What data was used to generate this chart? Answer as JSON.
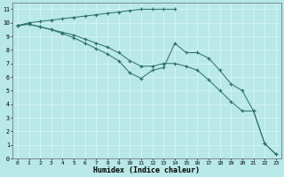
{
  "xlabel": "Humidex (Indice chaleur)",
  "xlim": [
    -0.5,
    23.5
  ],
  "ylim": [
    0,
    11.5
  ],
  "yticks": [
    0,
    1,
    2,
    3,
    4,
    5,
    6,
    7,
    8,
    9,
    10,
    11
  ],
  "xticks": [
    0,
    1,
    2,
    3,
    4,
    5,
    6,
    7,
    8,
    9,
    10,
    11,
    12,
    13,
    14,
    15,
    16,
    17,
    18,
    19,
    20,
    21,
    22,
    23
  ],
  "bg_color": "#b8e8e8",
  "grid_color": "#d8f4f4",
  "line_color": "#2a6e62",
  "line1_x": [
    0,
    1,
    2,
    3,
    4,
    5,
    6,
    7,
    8,
    9,
    10,
    11,
    12,
    13,
    14
  ],
  "line1_y": [
    9.8,
    10.0,
    10.1,
    10.2,
    10.3,
    10.4,
    10.5,
    10.6,
    10.7,
    10.8,
    10.9,
    11.0,
    11.0,
    11.0,
    11.0
  ],
  "line2_x": [
    0,
    1,
    2,
    3,
    4,
    5,
    6,
    7,
    8,
    9,
    10,
    11,
    12,
    13,
    14,
    15,
    16,
    17,
    18,
    19,
    20,
    21,
    22,
    23
  ],
  "line2_y": [
    9.8,
    9.9,
    9.7,
    9.5,
    9.3,
    9.1,
    8.8,
    8.5,
    8.2,
    7.8,
    7.2,
    6.8,
    6.8,
    7.0,
    7.0,
    6.8,
    6.5,
    5.8,
    5.0,
    4.2,
    3.5,
    3.5,
    1.1,
    0.3
  ],
  "line3_x": [
    0,
    1,
    2,
    3,
    4,
    5,
    6,
    7,
    8,
    9,
    10,
    11,
    12,
    13,
    14,
    15,
    16,
    17,
    18,
    19,
    20,
    21,
    22,
    23
  ],
  "line3_y": [
    9.8,
    9.9,
    9.7,
    9.5,
    9.2,
    8.9,
    8.5,
    8.1,
    7.7,
    7.2,
    6.3,
    5.9,
    6.5,
    6.7,
    8.5,
    7.8,
    7.8,
    7.4,
    6.5,
    5.5,
    5.0,
    3.5,
    1.1,
    0.3
  ]
}
